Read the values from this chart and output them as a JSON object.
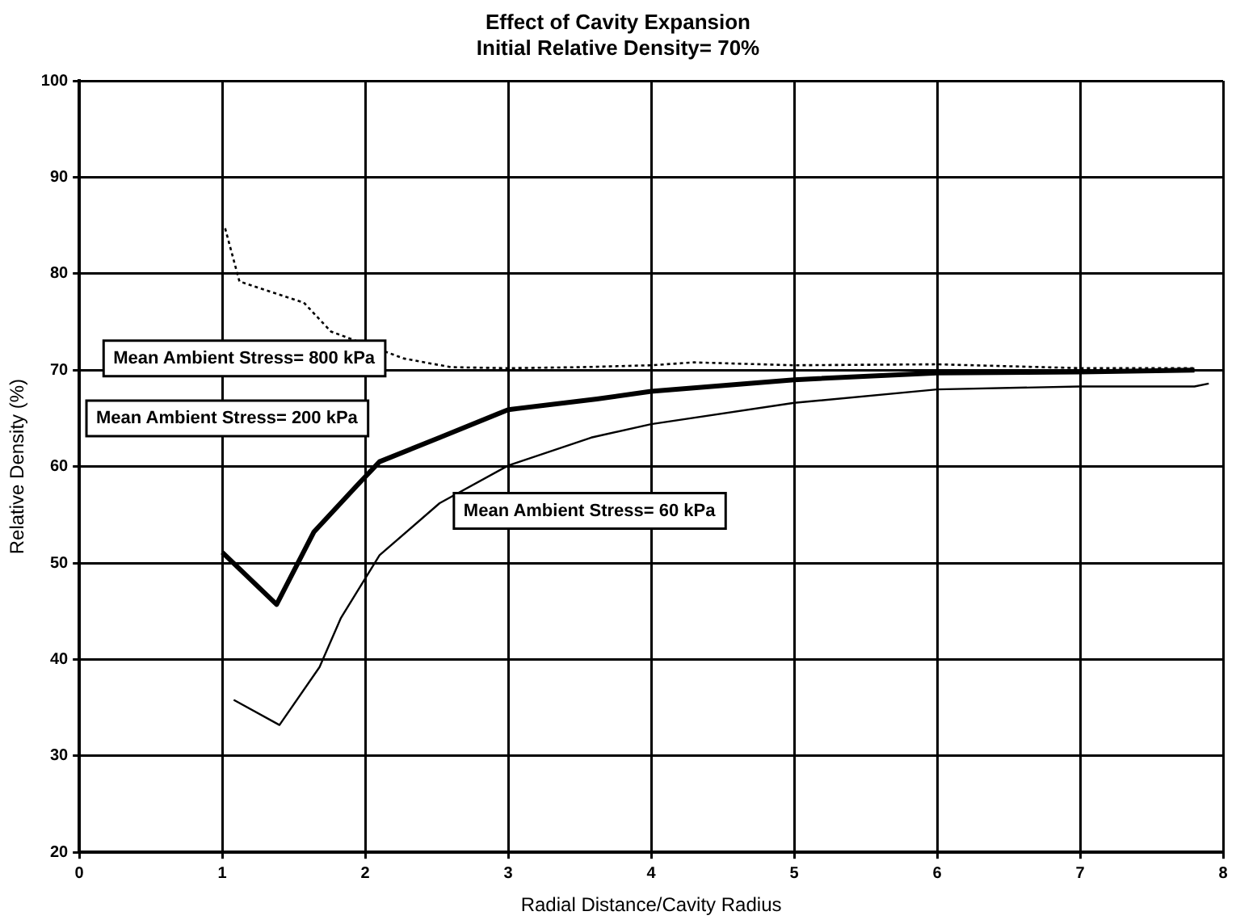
{
  "chart_data": {
    "type": "line",
    "title": "Effect of Cavity Expansion",
    "subtitle": "Initial Relative Density= 70%",
    "xlabel": "Radial Distance/Cavity Radius",
    "ylabel": "Relative Density (%)",
    "xlim": [
      0,
      8
    ],
    "xticks": [
      0,
      1,
      2,
      3,
      4,
      5,
      6,
      7,
      8
    ],
    "ylim": [
      20,
      100
    ],
    "yticks": [
      20,
      30,
      40,
      50,
      60,
      70,
      80,
      90,
      100
    ],
    "grid": true,
    "legend": false,
    "marker": "none",
    "series": [
      {
        "name": "Mean Ambient Stress= 800 kPa",
        "color": "#000000",
        "line_style": "dotted",
        "x": [
          1.02,
          1.12,
          1.3,
          1.57,
          1.76,
          2.27,
          2.6,
          3.0,
          3.5,
          4.0,
          4.3,
          5.0,
          6.0,
          7.0,
          7.8
        ],
        "values": [
          84.7,
          79.2,
          78.3,
          77,
          74,
          71.2,
          70.3,
          70.2,
          70.3,
          70.5,
          70.8,
          70.5,
          70.6,
          70.2,
          70.2
        ]
      },
      {
        "name": "Mean Ambient Stress= 200 kPa",
        "color": "#000000",
        "line_style": "solid",
        "x": [
          1.0,
          1.38,
          1.64,
          1.94,
          2.1,
          2.52,
          3.0,
          3.62,
          4.0,
          5.0,
          6.0,
          7.0,
          7.8
        ],
        "values": [
          51.1,
          45.7,
          53.2,
          58,
          60.5,
          63,
          65.9,
          67,
          67.8,
          69,
          69.7,
          69.8,
          70
        ]
      },
      {
        "name": "Mean Ambient Stress= 60 kPa",
        "color": "#000000",
        "line_style": "solid",
        "x": [
          1.08,
          1.4,
          1.68,
          1.83,
          2.1,
          2.52,
          3.0,
          3.58,
          4.0,
          5.0,
          6.0,
          7.0,
          7.8,
          7.9
        ],
        "values": [
          35.8,
          33.2,
          39.2,
          44.3,
          50.8,
          56.2,
          60.1,
          63,
          64.4,
          66.6,
          68,
          68.3,
          68.3,
          68.6
        ]
      }
    ]
  }
}
